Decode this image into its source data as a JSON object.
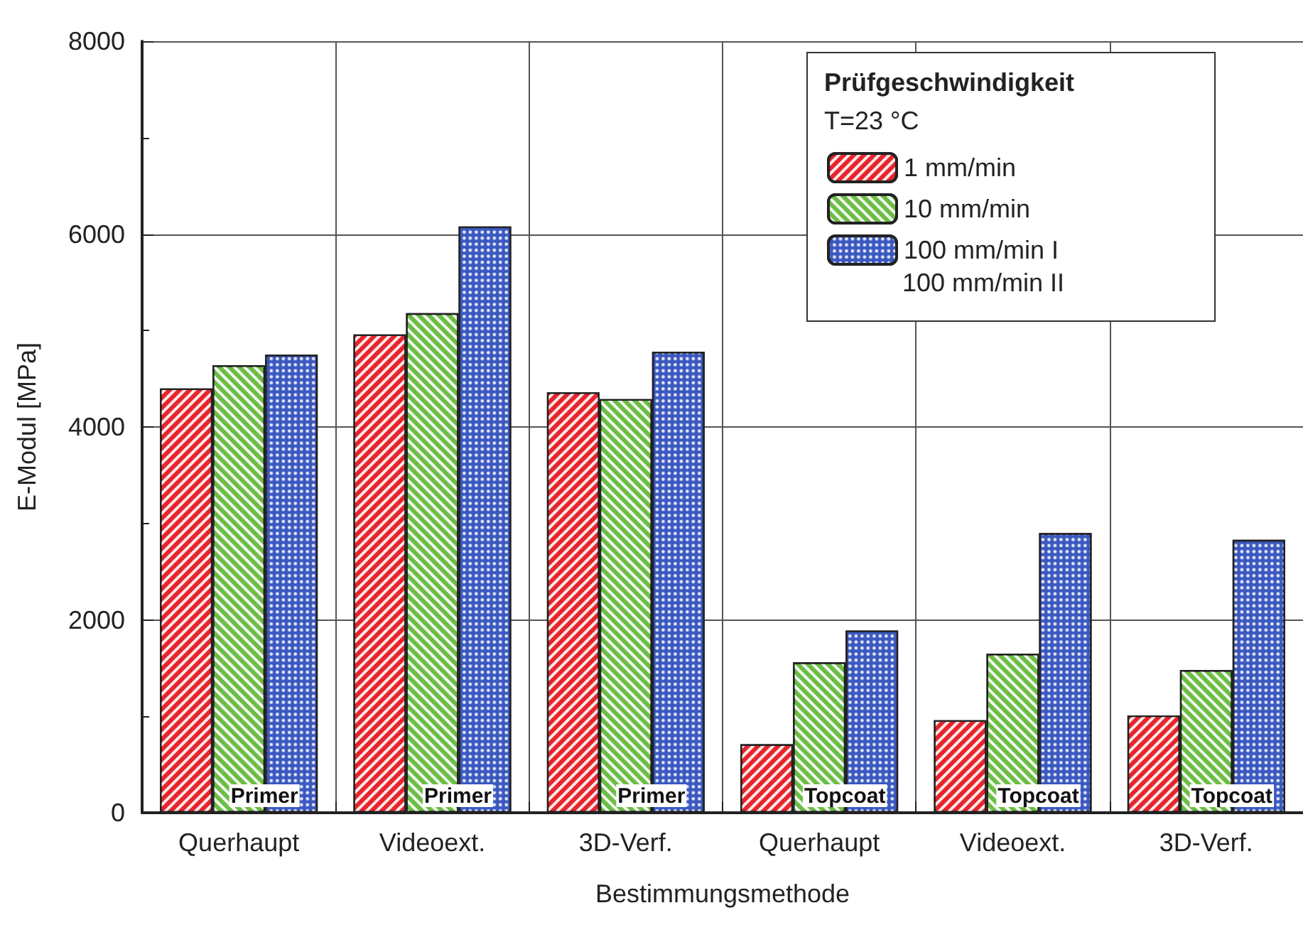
{
  "chart_data": {
    "type": "bar",
    "xlabel": "Bestimmungsmethode",
    "ylabel": "E-Modul [MPa]",
    "legend_title": "Prüfgeschwindigkeit",
    "categories": [
      "Querhaupt",
      "Videoext.",
      "3D-Verf.",
      "Querhaupt",
      "Videoext.",
      "3D-Verf."
    ],
    "series": [
      {
        "name": "1 mm/min",
        "color": "#e8242c",
        "values": [
          4400,
          4960,
          4360,
          710,
          960,
          1010
        ]
      },
      {
        "name": "10 mm/min",
        "color": "#6cbd45",
        "values": [
          4640,
          5180,
          4290,
          1560,
          1650,
          1480
        ]
      },
      {
        "name": "100 mm/min I",
        "color": "#3a58c0",
        "values": [
          4750,
          6080,
          4780,
          1890,
          2900,
          2830
        ]
      }
    ],
    "annotations": [
      "Primer",
      "Primer",
      "Primer",
      "Topcoat",
      "Topcoat",
      "Topcoat",
      "T=23 °C",
      "100 mm/min II"
    ],
    "ylim": [
      0,
      8000
    ],
    "yticks": [
      0,
      2000,
      4000,
      6000,
      8000
    ],
    "grid": true,
    "legend": "top right"
  }
}
